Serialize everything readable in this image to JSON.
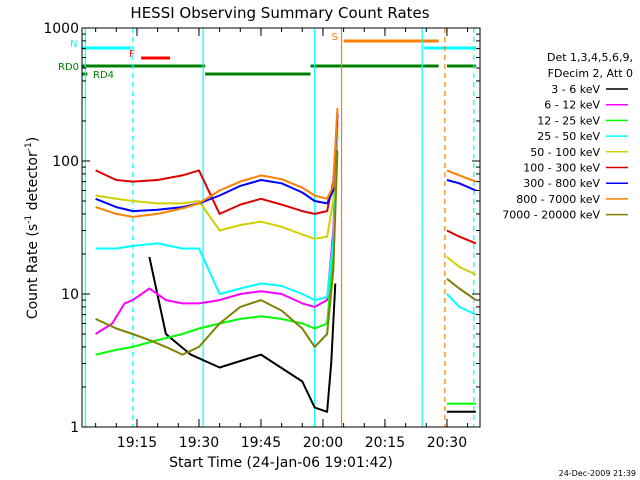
{
  "chart_data": {
    "type": "line",
    "title": "HESSI Observing Summary Count Rates",
    "xlabel": "Start Time (24-Jan-06 19:01:42)",
    "ylabel_main": "Count Rate (s",
    "ylabel_sup1": "-1",
    "ylabel_mid": " detector",
    "ylabel_sup2": "-1",
    "ylabel_end": ")",
    "yscale": "log",
    "xlim": [
      "19:01:42",
      "20:38:00"
    ],
    "ylim": [
      1,
      1000
    ],
    "x_ticks": [
      "19:15",
      "19:30",
      "19:45",
      "20:00",
      "20:15",
      "20:30"
    ],
    "y_ticks": [
      "1",
      "10",
      "100",
      "1000"
    ],
    "footer_date": "24-Dec-2009 21:39",
    "legend": {
      "header_line1": "Det 1,3,4,5,6,9,",
      "header_line2": "FDecim 2, Att 0",
      "entries": [
        {
          "label": "3 - 6 keV",
          "color": "#000000"
        },
        {
          "label": "6 - 12 keV",
          "color": "#ff00ff"
        },
        {
          "label": "12 - 25 keV",
          "color": "#00ff00"
        },
        {
          "label": "25 - 50 keV",
          "color": "#00ffff"
        },
        {
          "label": "50 - 100 keV",
          "color": "#d0d000"
        },
        {
          "label": "100 - 300 keV",
          "color": "#dd0000"
        },
        {
          "label": "300 - 800 keV",
          "color": "#0000ff"
        },
        {
          "label": "800 - 7000 keV",
          "color": "#ff8000"
        },
        {
          "label": "7000 - 20000 keV",
          "color": "#808000"
        }
      ]
    },
    "flags": [
      {
        "label": "N",
        "color": "#00ffff",
        "segments": [
          [
            "19:01:42",
            "19:13:30"
          ],
          [
            "20:24:30",
            "20:37:00"
          ]
        ]
      },
      {
        "label": "F",
        "color": "#ff0000",
        "segments": [
          [
            "19:16:00",
            "19:23:00"
          ]
        ]
      },
      {
        "label": "S",
        "color": "#ff8000",
        "segments": [
          [
            "20:05:00",
            "20:28:00"
          ]
        ]
      },
      {
        "label": "RD0",
        "color": "#008000",
        "segments": [
          [
            "19:01:42",
            "19:31:30"
          ],
          [
            "19:57:00",
            "20:28:00"
          ],
          [
            "20:30:00",
            "20:37:00"
          ]
        ]
      },
      {
        "label": "RD4",
        "color": "#008000",
        "segments": [
          [
            "19:01:42",
            "19:03:00"
          ],
          [
            "19:31:30",
            "19:57:00"
          ]
        ]
      }
    ],
    "vertical_markers": [
      {
        "time": "19:02:30",
        "color": "#00ffff",
        "style": "solid"
      },
      {
        "time": "19:14:00",
        "color": "#00ffff",
        "style": "dashed"
      },
      {
        "time": "19:31:00",
        "color": "#00ffff",
        "style": "solid"
      },
      {
        "time": "19:58:00",
        "color": "#00ffff",
        "style": "solid"
      },
      {
        "time": "20:04:30",
        "color": "#ff8000",
        "style": "solid"
      },
      {
        "time": "20:24:00",
        "color": "#00ffff",
        "style": "solid"
      },
      {
        "time": "20:29:30",
        "color": "#ff8000",
        "style": "dashed"
      },
      {
        "time": "20:36:30",
        "color": "#00ffff",
        "style": "dashed"
      }
    ],
    "series": [
      {
        "name": "3 - 6 keV",
        "color": "#000000",
        "x": [
          "19:02:00",
          "19:10:00",
          "19:14:00",
          "19:18:00",
          "19:22:00",
          "19:28:00",
          "19:35:00",
          "19:45:00",
          "19:55:00",
          "19:58:00",
          "20:01:00",
          "20:02:00",
          "20:03:00",
          "20:04:00",
          "20:30:00",
          "20:34:00",
          "20:37:00"
        ],
        "y": [
          null,
          null,
          null,
          19,
          5,
          3.5,
          2.8,
          3.5,
          2.2,
          1.4,
          1.3,
          3,
          12,
          null,
          1.3,
          1.3,
          1.3
        ]
      },
      {
        "name": "6 - 12 keV",
        "color": "#ff00ff",
        "x": [
          "19:02:00",
          "19:05:00",
          "19:09:00",
          "19:12:00",
          "19:14:00",
          "19:18:00",
          "19:22:00",
          "19:26:00",
          "19:30:00",
          "19:35:00",
          "19:40:00",
          "19:45:00",
          "19:50:00",
          "19:55:00",
          "19:58:00",
          "20:01:00",
          "20:02:30",
          "20:03:30",
          "20:04:00"
        ],
        "y": [
          null,
          5,
          6,
          8.5,
          9,
          11,
          9,
          8.5,
          8.5,
          9,
          10,
          10.5,
          10,
          8.5,
          8,
          9,
          30,
          200,
          null
        ]
      },
      {
        "name": "12 - 25 keV",
        "color": "#00ff00",
        "x": [
          "19:02:00",
          "19:05:00",
          "19:10:00",
          "19:14:00",
          "19:20:00",
          "19:26:00",
          "19:30:00",
          "19:35:00",
          "19:40:00",
          "19:45:00",
          "19:50:00",
          "19:55:00",
          "19:58:00",
          "20:01:00",
          "20:02:30",
          "20:03:30",
          "20:04:00",
          "20:30:00",
          "20:33:00",
          "20:37:00"
        ],
        "y": [
          null,
          3.5,
          3.8,
          4,
          4.5,
          5,
          5.5,
          6,
          6.5,
          6.8,
          6.5,
          6,
          5.5,
          6,
          20,
          160,
          null,
          1.5,
          1.5,
          1.5
        ]
      },
      {
        "name": "25 - 50 keV",
        "color": "#00ffff",
        "x": [
          "19:02:00",
          "19:05:00",
          "19:10:00",
          "19:14:00",
          "19:20:00",
          "19:26:00",
          "19:30:00",
          "19:35:00",
          "19:40:00",
          "19:45:00",
          "19:50:00",
          "19:55:00",
          "19:58:00",
          "20:01:00",
          "20:02:30",
          "20:03:30",
          "20:04:00",
          "20:30:00",
          "20:33:00",
          "20:37:00"
        ],
        "y": [
          null,
          22,
          22,
          23,
          24,
          22,
          22,
          10,
          11,
          12,
          11.5,
          10,
          9,
          9.5,
          25,
          150,
          null,
          10,
          8,
          7
        ]
      },
      {
        "name": "50 - 100 keV",
        "color": "#d0d000",
        "x": [
          "19:02:00",
          "19:05:00",
          "19:10:00",
          "19:14:00",
          "19:20:00",
          "19:26:00",
          "19:30:00",
          "19:35:00",
          "19:40:00",
          "19:45:00",
          "19:50:00",
          "19:55:00",
          "19:58:00",
          "20:01:00",
          "20:02:30",
          "20:03:30",
          "20:04:00",
          "20:30:00",
          "20:33:00",
          "20:37:00"
        ],
        "y": [
          null,
          55,
          52,
          50,
          48,
          48,
          50,
          30,
          33,
          35,
          32,
          28,
          26,
          27,
          50,
          180,
          null,
          19,
          16,
          14
        ]
      },
      {
        "name": "100 - 300 keV",
        "color": "#dd0000",
        "x": [
          "19:02:00",
          "19:05:00",
          "19:10:00",
          "19:14:00",
          "19:20:00",
          "19:26:00",
          "19:30:00",
          "19:35:00",
          "19:40:00",
          "19:45:00",
          "19:50:00",
          "19:55:00",
          "19:58:00",
          "20:01:00",
          "20:02:30",
          "20:03:30",
          "20:04:00",
          "20:30:00",
          "20:33:00",
          "20:37:00"
        ],
        "y": [
          null,
          85,
          72,
          70,
          72,
          78,
          85,
          40,
          47,
          52,
          47,
          42,
          40,
          42,
          70,
          220,
          null,
          30,
          27,
          24
        ]
      },
      {
        "name": "300 - 800 keV",
        "color": "#0000ff",
        "x": [
          "19:02:00",
          "19:05:00",
          "19:10:00",
          "19:14:00",
          "19:20:00",
          "19:26:00",
          "19:30:00",
          "19:35:00",
          "19:40:00",
          "19:45:00",
          "19:50:00",
          "19:55:00",
          "19:58:00",
          "20:01:00",
          "20:02:30",
          "20:03:30",
          "20:04:00",
          "20:30:00",
          "20:33:00",
          "20:37:00"
        ],
        "y": [
          null,
          52,
          45,
          42,
          43,
          45,
          48,
          55,
          65,
          72,
          68,
          58,
          50,
          48,
          60,
          230,
          null,
          72,
          68,
          60
        ]
      },
      {
        "name": "800 - 7000 keV",
        "color": "#ff8000",
        "x": [
          "19:02:00",
          "19:05:00",
          "19:10:00",
          "19:14:00",
          "19:20:00",
          "19:26:00",
          "19:30:00",
          "19:35:00",
          "19:40:00",
          "19:45:00",
          "19:50:00",
          "19:55:00",
          "19:58:00",
          "20:01:00",
          "20:02:30",
          "20:03:30",
          "20:04:00",
          "20:30:00",
          "20:33:00",
          "20:37:00"
        ],
        "y": [
          null,
          45,
          40,
          38,
          40,
          44,
          48,
          60,
          70,
          78,
          73,
          63,
          55,
          52,
          65,
          250,
          null,
          85,
          78,
          70
        ]
      },
      {
        "name": "7000 - 20000 keV",
        "color": "#808000",
        "x": [
          "19:02:00",
          "19:05:00",
          "19:10:00",
          "19:14:00",
          "19:18:00",
          "19:22:00",
          "19:26:00",
          "19:30:00",
          "19:35:00",
          "19:40:00",
          "19:45:00",
          "19:50:00",
          "19:55:00",
          "19:58:00",
          "20:01:00",
          "20:02:30",
          "20:03:30",
          "20:04:00",
          "20:30:00",
          "20:33:00",
          "20:37:00"
        ],
        "y": [
          null,
          6.5,
          5.5,
          5,
          4.5,
          4,
          3.5,
          4,
          6,
          8,
          9,
          7.5,
          5.5,
          4,
          5,
          15,
          120,
          null,
          13,
          11,
          9
        ]
      }
    ]
  }
}
